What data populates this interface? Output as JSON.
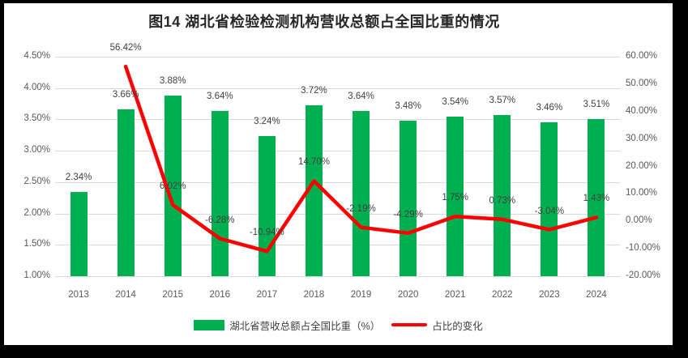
{
  "window": {
    "frame_color": "#000000",
    "background": "#ffffff"
  },
  "colors": {
    "bar": "#00B050",
    "line": "#FF0000",
    "grid": "#d9d9d9",
    "axis_text": "#595959",
    "data_label_text": "#404040",
    "title_text": "#262626"
  },
  "chart_data": {
    "type": "bar",
    "subtype": "combo-bar-line",
    "title": "图14 湖北省检验检测机构营收总额占全国比重的情况",
    "categories": [
      "2013",
      "2014",
      "2015",
      "2016",
      "2017",
      "2018",
      "2019",
      "2020",
      "2021",
      "2022",
      "2023",
      "2024"
    ],
    "series": [
      {
        "name": "湖北省营收总额占全国比重（%）",
        "type": "bar",
        "axis": "left",
        "values": [
          2.34,
          3.66,
          3.88,
          3.64,
          3.24,
          3.72,
          3.64,
          3.48,
          3.54,
          3.57,
          3.46,
          3.51
        ],
        "labels": [
          "2.34%",
          "3.66%",
          "3.88%",
          "3.64%",
          "3.24%",
          "3.72%",
          "3.64%",
          "3.48%",
          "3.54%",
          "3.57%",
          "3.46%",
          "3.51%"
        ]
      },
      {
        "name": "占比的变化",
        "type": "line",
        "axis": "right",
        "values": [
          null,
          56.42,
          6.02,
          -6.28,
          -10.94,
          14.7,
          -2.19,
          -4.29,
          1.75,
          0.73,
          -3.04,
          1.43
        ],
        "labels": [
          null,
          "56.42%",
          "6.02%",
          "-6.28%",
          "-10.94%",
          "14.70%",
          "-2.19%",
          "-4.29%",
          "1.75%",
          "0.73%",
          "-3.04%",
          "1.43%"
        ]
      }
    ],
    "left_axis": {
      "min": 1.0,
      "max": 4.5,
      "step": 0.5,
      "tick_labels": [
        "4.50%",
        "4.00%",
        "3.50%",
        "3.00%",
        "2.50%",
        "2.00%",
        "1.50%",
        "1.00%"
      ]
    },
    "right_axis": {
      "min": -20,
      "max": 60,
      "step": 10,
      "tick_labels": [
        "60.00%",
        "50.00%",
        "40.00%",
        "30.00%",
        "20.00%",
        "10.00%",
        "0.00%",
        "-10.00%",
        "-20.00%"
      ]
    },
    "grid": true,
    "legend_position": "bottom"
  }
}
